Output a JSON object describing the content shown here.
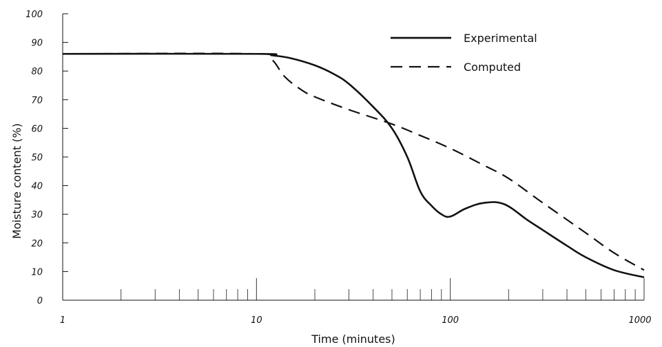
{
  "chart_data": {
    "type": "line",
    "xscale": "log",
    "xlim": [
      1,
      1000
    ],
    "ylim": [
      0,
      100
    ],
    "xlabel": "Time (minutes)",
    "ylabel": "Moisture content (%)",
    "xticks": [
      "1",
      "10",
      "100",
      "1000"
    ],
    "yticks": [
      "0",
      "10",
      "20",
      "30",
      "40",
      "50",
      "60",
      "70",
      "80",
      "90",
      "100"
    ],
    "legend_position": "top-right",
    "series": [
      {
        "name": "Experimental",
        "line_style": "solid",
        "color": "#111111",
        "points": [
          [
            1,
            86
          ],
          [
            10,
            86
          ],
          [
            12,
            85.5
          ],
          [
            15,
            84.5
          ],
          [
            20,
            82
          ],
          [
            25,
            79
          ],
          [
            30,
            75.5
          ],
          [
            40,
            67.5
          ],
          [
            50,
            60
          ],
          [
            60,
            50
          ],
          [
            70,
            38
          ],
          [
            80,
            33
          ],
          [
            90,
            30
          ],
          [
            100,
            29.2
          ],
          [
            120,
            32
          ],
          [
            150,
            34
          ],
          [
            190,
            33.5
          ],
          [
            250,
            28
          ],
          [
            300,
            24.5
          ],
          [
            400,
            19
          ],
          [
            500,
            15
          ],
          [
            700,
            10.5
          ],
          [
            1000,
            8
          ]
        ]
      },
      {
        "name": "Computed",
        "line_style": "dashed",
        "color": "#111111",
        "points": [
          [
            1,
            86
          ],
          [
            10,
            86
          ],
          [
            12,
            84
          ],
          [
            14,
            78
          ],
          [
            17,
            73.5
          ],
          [
            20,
            71
          ],
          [
            30,
            66.5
          ],
          [
            50,
            61.5
          ],
          [
            70,
            57.5
          ],
          [
            100,
            53
          ],
          [
            150,
            47
          ],
          [
            200,
            42.5
          ],
          [
            300,
            34
          ],
          [
            500,
            23.5
          ],
          [
            700,
            16.5
          ],
          [
            1000,
            10.5
          ]
        ]
      }
    ]
  }
}
